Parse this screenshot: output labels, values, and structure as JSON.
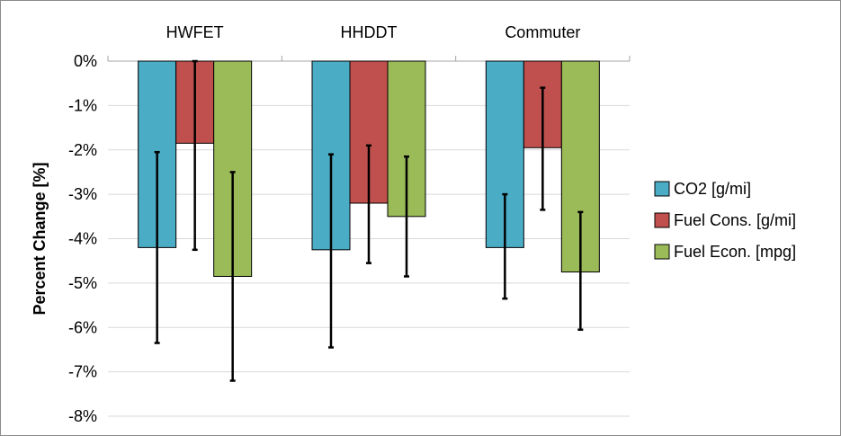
{
  "chart_data": {
    "type": "bar",
    "title": "",
    "xlabel": "",
    "ylabel": "Percent Change [%]",
    "categories": [
      "HWFET",
      "HHDDT",
      "Commuter"
    ],
    "ylim": [
      -8,
      0
    ],
    "yticks": [
      0,
      -1,
      -2,
      -3,
      -4,
      -5,
      -6,
      -7,
      -8
    ],
    "ytick_labels": [
      "0%",
      "-1%",
      "-2%",
      "-3%",
      "-4%",
      "-5%",
      "-6%",
      "-7%",
      "-8%"
    ],
    "x_axis_position": "top",
    "grid": "horizontal",
    "legend_position": "right",
    "series": [
      {
        "name": "CO2 [g/mi]",
        "color": "#4bacc6",
        "values": [
          -4.2,
          -4.25,
          -4.2
        ],
        "error_low": [
          -6.35,
          -6.45,
          -5.35
        ],
        "error_high": [
          -2.05,
          -2.1,
          -3.0
        ]
      },
      {
        "name": "Fuel Cons. [g/mi]",
        "color": "#c0504d",
        "values": [
          -1.85,
          -3.2,
          -1.95
        ],
        "error_low": [
          -4.25,
          -4.55,
          -3.35
        ],
        "error_high": [
          0.0,
          -1.9,
          -0.6
        ]
      },
      {
        "name": "Fuel Econ. [mpg]",
        "color": "#9bbb59",
        "values": [
          -4.85,
          -3.5,
          -4.75
        ],
        "error_low": [
          -7.2,
          -4.85,
          -6.05
        ],
        "error_high": [
          -2.5,
          -2.15,
          -3.4
        ]
      }
    ]
  }
}
